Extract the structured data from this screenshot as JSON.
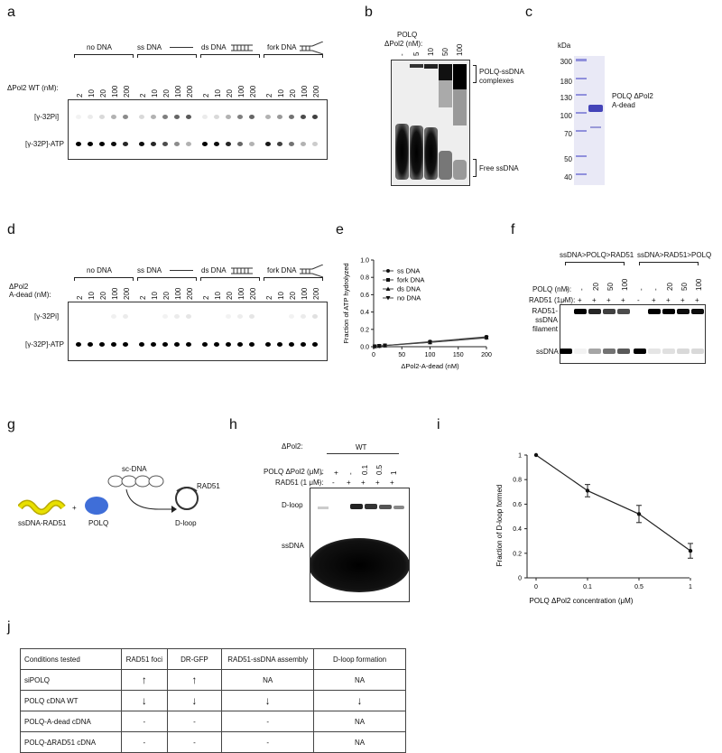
{
  "panel_letters": [
    "a",
    "b",
    "c",
    "d",
    "e",
    "f",
    "g",
    "h",
    "i",
    "j"
  ],
  "panel_a": {
    "dna_groups": [
      "no DNA",
      "ss DNA",
      "ds DNA",
      "fork DNA"
    ],
    "conc_label": "ΔPol2 WT (nM):",
    "concs": [
      "2",
      "10",
      "20",
      "100",
      "200"
    ],
    "row_pi": "[γ-32Pi]",
    "row_atp": "[γ-32P]-ATP"
  },
  "panel_b": {
    "title": "POLQ",
    "conc_label": "ΔPol2 (nM):",
    "concs": [
      "-",
      "5",
      "10",
      "50",
      "100"
    ],
    "complex_label": "POLQ-ssDNA complexes",
    "free_label": "Free ssDNA"
  },
  "panel_c": {
    "unit": "kDa",
    "markers": [
      "300",
      "180",
      "130",
      "100",
      "70",
      "50",
      "40"
    ],
    "band_label": "POLQ ΔPol2 A-dead"
  },
  "panel_d": {
    "dna_groups": [
      "no DNA",
      "ss DNA",
      "ds DNA",
      "fork DNA"
    ],
    "conc_label_1": "ΔPol2",
    "conc_label_2": "A-dead (nM):",
    "concs": [
      "2",
      "10",
      "20",
      "100",
      "200"
    ],
    "row_pi": "[γ-32Pi]",
    "row_atp": "[γ-32P]-ATP"
  },
  "panel_f": {
    "group1": "ssDNA>POLQ>RAD51",
    "group2": "ssDNA>RAD51>POLQ",
    "polq_label": "POLQ (nM):",
    "polq_values": [
      "-",
      "-",
      "20",
      "50",
      "100",
      "-",
      "-",
      "20",
      "50",
      "100"
    ],
    "rad51_label": "RAD51 (1μM):",
    "rad51_values": [
      "-",
      "+",
      "+",
      "+",
      "+",
      "-",
      "+",
      "+",
      "+",
      "+"
    ],
    "filament_label": "RAD51-ssDNA filament",
    "ssdna_label": "ssDNA"
  },
  "panel_g": {
    "scdna": "sc-DNA",
    "rad51": "RAD51",
    "ssdna_rad51": "ssDNA-RAD51",
    "plus": "+",
    "polq": "POLQ",
    "dloop": "D-loop"
  },
  "panel_h": {
    "pol_label": "ΔPol2:",
    "wt": "WT",
    "polq_label": "POLQ ΔPol2 (μM):",
    "polq_values": [
      "-",
      "+",
      "-",
      "0.1",
      "0.5",
      "1"
    ],
    "rad51_label": "RAD51 (1 μM):",
    "rad51_values": [
      "-",
      "-",
      "+",
      "+",
      "+",
      "+"
    ],
    "dloop_label": "D-loop",
    "ssdna_label": "ssDNA"
  },
  "panel_j": {
    "headers": [
      "Conditions tested",
      "RAD51 foci",
      "DR-GFP",
      "RAD51-ssDNA assembly",
      "D-loop formation"
    ],
    "rows": [
      [
        "siPOLQ",
        "↑",
        "↑",
        "NA",
        "NA"
      ],
      [
        "POLQ cDNA WT",
        "↓",
        "↓",
        "↓",
        "↓"
      ],
      [
        "POLQ-A-dead cDNA",
        "-",
        "-",
        "-",
        "NA"
      ],
      [
        "POLQ-ΔRAD51 cDNA",
        "-",
        "-",
        "-",
        "NA"
      ]
    ]
  },
  "chart_data": [
    {
      "type": "line",
      "panel": "e",
      "xlabel": "ΔPol2-A-dead (nM)",
      "ylabel": "Fraction of ATP hydrolyzed",
      "xlim": [
        0,
        200
      ],
      "ylim": [
        0,
        1.0
      ],
      "xticks": [
        "0",
        "50",
        "100",
        "150",
        "200"
      ],
      "yticks": [
        "0.0",
        "0.2",
        "0.4",
        "0.6",
        "0.8",
        "1.0"
      ],
      "x": [
        2,
        10,
        20,
        100,
        200
      ],
      "series": [
        {
          "name": "ss DNA",
          "marker": "circle",
          "values": [
            0.005,
            0.01,
            0.015,
            0.06,
            0.115
          ]
        },
        {
          "name": "fork DNA",
          "marker": "square",
          "values": [
            0.005,
            0.01,
            0.015,
            0.055,
            0.11
          ]
        },
        {
          "name": "ds DNA",
          "marker": "triangle-up",
          "values": [
            0.004,
            0.008,
            0.013,
            0.05,
            0.105
          ]
        },
        {
          "name": "no DNA",
          "marker": "triangle-down",
          "values": [
            0.003,
            0.007,
            0.012,
            0.048,
            0.1
          ]
        }
      ],
      "legend": "top-left",
      "grid": false
    },
    {
      "type": "line",
      "panel": "i",
      "xlabel": "POLQ ΔPol2 concentration (μM)",
      "ylabel": "Fraction of D-loop formed",
      "categories": [
        "0",
        "0.1",
        "0.5",
        "1"
      ],
      "ylim": [
        0,
        1
      ],
      "yticks": [
        "0",
        "0.2",
        "0.4",
        "0.6",
        "0.8",
        "1"
      ],
      "series": [
        {
          "values": [
            1.0,
            0.71,
            0.52,
            0.22
          ],
          "errors": [
            0,
            0.05,
            0.07,
            0.06
          ]
        }
      ],
      "grid": false
    }
  ]
}
